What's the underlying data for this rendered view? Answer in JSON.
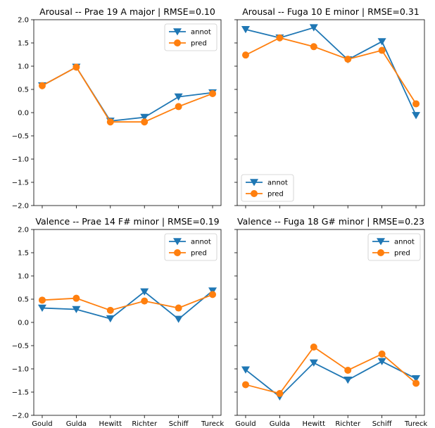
{
  "colors": {
    "annot": "#1f77b4",
    "pred": "#ff7f0e",
    "axis": "#000000",
    "legend_border": "#cccccc"
  },
  "chart_data": [
    {
      "type": "line",
      "title": "Arousal -- Prae 19 A major | RMSE=0.10",
      "categories": [
        "Gould",
        "Gulda",
        "Hewitt",
        "Richter",
        "Schiff",
        "Tureck"
      ],
      "ylim": [
        -2.0,
        2.0
      ],
      "yticks": [
        "2.0",
        "1.5",
        "1.0",
        "0.5",
        "0.0",
        "−0.5",
        "−1.0",
        "−1.5",
        "−2.0"
      ],
      "show_xticklabels": false,
      "legend_position": "upper-right",
      "series": [
        {
          "name": "annot",
          "marker": "triangle-down",
          "values": [
            0.58,
            0.98,
            -0.18,
            -0.1,
            0.34,
            0.43
          ]
        },
        {
          "name": "pred",
          "marker": "circle",
          "values": [
            0.58,
            0.98,
            -0.2,
            -0.2,
            0.13,
            0.41
          ]
        }
      ]
    },
    {
      "type": "line",
      "title": "Arousal -- Fuga 10 E minor | RMSE=0.31",
      "categories": [
        "Gould",
        "Gulda",
        "Hewitt",
        "Richter",
        "Schiff",
        "Tureck"
      ],
      "ylim": [
        -2.0,
        2.0
      ],
      "show_xticklabels": false,
      "legend_position": "lower-left",
      "series": [
        {
          "name": "annot",
          "marker": "triangle-down",
          "values": [
            1.79,
            1.61,
            1.83,
            1.14,
            1.53,
            -0.06
          ]
        },
        {
          "name": "pred",
          "marker": "circle",
          "values": [
            1.24,
            1.61,
            1.42,
            1.15,
            1.34,
            0.19
          ]
        }
      ]
    },
    {
      "type": "line",
      "title": "Valence -- Prae 14 F# minor | RMSE=0.19",
      "categories": [
        "Gould",
        "Gulda",
        "Hewitt",
        "Richter",
        "Schiff",
        "Tureck"
      ],
      "ylim": [
        -2.0,
        2.0
      ],
      "yticks": [
        "2.0",
        "1.5",
        "1.0",
        "0.5",
        "0.0",
        "−0.5",
        "−1.0",
        "−1.5",
        "−2.0"
      ],
      "show_xticklabels": true,
      "legend_position": "upper-right",
      "series": [
        {
          "name": "annot",
          "marker": "triangle-down",
          "values": [
            0.31,
            0.28,
            0.08,
            0.66,
            0.07,
            0.68
          ]
        },
        {
          "name": "pred",
          "marker": "circle",
          "values": [
            0.48,
            0.52,
            0.26,
            0.46,
            0.31,
            0.6
          ]
        }
      ]
    },
    {
      "type": "line",
      "title": "Valence -- Fuga 18 G# minor | RMSE=0.23",
      "categories": [
        "Gould",
        "Gulda",
        "Hewitt",
        "Richter",
        "Schiff",
        "Tureck"
      ],
      "ylim": [
        -2.0,
        2.0
      ],
      "show_xticklabels": true,
      "legend_position": "upper-right",
      "series": [
        {
          "name": "annot",
          "marker": "triangle-down",
          "values": [
            -1.02,
            -1.6,
            -0.87,
            -1.24,
            -0.84,
            -1.21
          ]
        },
        {
          "name": "pred",
          "marker": "circle",
          "values": [
            -1.34,
            -1.53,
            -0.53,
            -1.03,
            -0.68,
            -1.31
          ]
        }
      ]
    }
  ]
}
